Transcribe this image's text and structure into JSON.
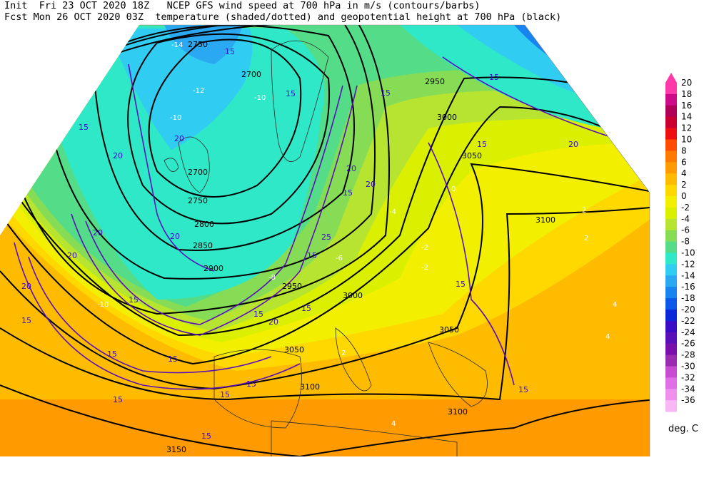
{
  "header": {
    "line1": "Init  Fri 23 OCT 2020 18Z   NCEP GFS wind speed at 700 hPa in m/s (contours/barbs)",
    "line2": "Fcst Mon 26 OCT 2020 03Z  temperature (shaded/dotted) and geopotential height at 700 hPa (black)"
  },
  "colorbar": {
    "units": "deg. C",
    "levels": [
      "20",
      "18",
      "16",
      "14",
      "12",
      "10",
      "8",
      "6",
      "4",
      "2",
      "0",
      "-2",
      "-4",
      "-6",
      "-8",
      "-10",
      "-12",
      "-14",
      "-16",
      "-18",
      "-20",
      "-22",
      "-24",
      "-26",
      "-28",
      "-30",
      "-32",
      "-34",
      "-36"
    ],
    "colors": [
      "#ff3aa8",
      "#cc0a8a",
      "#b00058",
      "#cc0030",
      "#ee1010",
      "#ff4c00",
      "#ff7a00",
      "#ff9a00",
      "#ffbb00",
      "#ffd800",
      "#f2f000",
      "#daf000",
      "#b6e430",
      "#86dd55",
      "#54dc88",
      "#2ee8c8",
      "#30ccf2",
      "#2aa8f2",
      "#1884f0",
      "#0c58e8",
      "#0a28d8",
      "#3a0cc6",
      "#5a10b8",
      "#7a10ac",
      "#9a2cb2",
      "#c84cd2",
      "#e06ee6",
      "#f090ee",
      "#f8b8f6"
    ]
  },
  "map_labels": {
    "height": [
      "2750",
      "2700",
      "2700",
      "2750",
      "2800",
      "2850",
      "2900",
      "2950",
      "2950",
      "3000",
      "3050",
      "3100",
      "3050",
      "3050",
      "3100",
      "3100",
      "3150",
      "3000"
    ],
    "wind": [
      "15",
      "15",
      "20",
      "20",
      "15",
      "20",
      "20",
      "20",
      "20",
      "15",
      "15",
      "20",
      "15",
      "15",
      "15",
      "15",
      "15",
      "15",
      "15",
      "15",
      "15",
      "15",
      "20",
      "15",
      "20",
      "15",
      "15",
      "15",
      "20",
      "25",
      "15"
    ],
    "temperature": [
      "-10",
      "-10",
      "-8",
      "-6",
      "-2",
      "0",
      "2",
      "2",
      "4",
      "4",
      "4",
      "2",
      "-4",
      "-2",
      "-14",
      "-12",
      "-10"
    ]
  }
}
